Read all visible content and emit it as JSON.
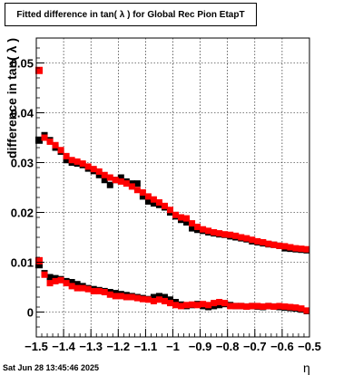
{
  "title": "Fitted difference in tan( λ ) for Global Rec Pion EtapT",
  "footer_date": "Sat Jun 28 13:45:46 2025",
  "chart_data": {
    "type": "scatter",
    "title": "Fitted difference in tan( λ ) for Global Rec Pion EtapT",
    "xlabel": "η",
    "ylabel": "difference in tan( λ )",
    "xlim": [
      -1.5,
      -0.5
    ],
    "ylim": [
      -0.005,
      0.055
    ],
    "grid": true,
    "x_ticks": [
      -1.5,
      -1.4,
      -1.3,
      -1.2,
      -1.1,
      -1.0,
      -0.9,
      -0.8,
      -0.7,
      -0.6,
      -0.5
    ],
    "x_tick_labels": [
      "−1.5",
      "−1.4",
      "−1.3",
      "−1.2",
      "−1.1",
      "−1",
      "−0.9",
      "−0.8",
      "−0.7",
      "−0.6",
      "−0.5"
    ],
    "y_ticks": [
      0,
      0.01,
      0.02,
      0.03,
      0.04,
      0.05
    ],
    "y_tick_labels": [
      "0",
      "0.01",
      "0.02",
      "0.03",
      "0.04",
      "0.05"
    ],
    "series": [
      {
        "color": "#000000",
        "x": [
          -1.49,
          -1.47,
          -1.45,
          -1.43,
          -1.41,
          -1.39,
          -1.37,
          -1.35,
          -1.33,
          -1.31,
          -1.29,
          -1.27,
          -1.25,
          -1.23,
          -1.21,
          -1.19,
          -1.17,
          -1.15,
          -1.13,
          -1.11,
          -1.09,
          -1.07,
          -1.05,
          -1.03,
          -1.01,
          -0.99,
          -0.97,
          -0.95,
          -0.93,
          -0.91,
          -0.89,
          -0.87,
          -0.85,
          -0.83,
          -0.81,
          -0.79,
          -0.77,
          -0.75,
          -0.73,
          -0.71,
          -0.69,
          -0.67,
          -0.65,
          -0.63,
          -0.61,
          -0.59,
          -0.57,
          -0.55,
          -0.53,
          -0.51
        ],
        "y": [
          0.0345,
          0.0355,
          0.0345,
          0.033,
          0.0322,
          0.0305,
          0.03,
          0.0298,
          0.0295,
          0.0288,
          0.0283,
          0.0275,
          0.0265,
          0.0255,
          0.0265,
          0.027,
          0.0262,
          0.0258,
          0.0258,
          0.0232,
          0.0222,
          0.0218,
          0.0215,
          0.021,
          0.02,
          0.0192,
          0.0185,
          0.018,
          0.0168,
          0.0165,
          0.0163,
          0.016,
          0.0158,
          0.0156,
          0.0155,
          0.0152,
          0.015,
          0.0148,
          0.0146,
          0.0142,
          0.014,
          0.0138,
          0.0136,
          0.0135,
          0.0133,
          0.0128,
          0.0127,
          0.0126,
          0.0125,
          0.0124
        ]
      },
      {
        "color": "#ff0000",
        "x": [
          -1.49,
          -1.47,
          -1.45,
          -1.43,
          -1.41,
          -1.39,
          -1.37,
          -1.35,
          -1.33,
          -1.31,
          -1.29,
          -1.27,
          -1.25,
          -1.23,
          -1.21,
          -1.19,
          -1.17,
          -1.15,
          -1.13,
          -1.11,
          -1.09,
          -1.07,
          -1.05,
          -1.03,
          -1.01,
          -0.99,
          -0.97,
          -0.95,
          -0.93,
          -0.91,
          -0.89,
          -0.87,
          -0.85,
          -0.83,
          -0.81,
          -0.79,
          -0.77,
          -0.75,
          -0.73,
          -0.71,
          -0.69,
          -0.67,
          -0.65,
          -0.63,
          -0.61,
          -0.59,
          -0.57,
          -0.55,
          -0.53,
          -0.51
        ],
        "y": [
          0.0485,
          0.035,
          0.0342,
          0.0335,
          0.0325,
          0.0313,
          0.0305,
          0.0302,
          0.0298,
          0.0292,
          0.0287,
          0.0282,
          0.0275,
          0.027,
          0.0265,
          0.0262,
          0.0258,
          0.0252,
          0.0245,
          0.024,
          0.0232,
          0.0226,
          0.022,
          0.0213,
          0.0205,
          0.0195,
          0.019,
          0.0188,
          0.0178,
          0.0171,
          0.0166,
          0.0163,
          0.016,
          0.0158,
          0.0156,
          0.0155,
          0.0153,
          0.015,
          0.0148,
          0.0145,
          0.0142,
          0.014,
          0.0137,
          0.0135,
          0.0133,
          0.0132,
          0.013,
          0.0128,
          0.0127,
          0.0126
        ]
      },
      {
        "color": "#000000",
        "x": [
          -1.49,
          -1.47,
          -1.45,
          -1.43,
          -1.41,
          -1.39,
          -1.37,
          -1.35,
          -1.33,
          -1.31,
          -1.29,
          -1.27,
          -1.25,
          -1.23,
          -1.21,
          -1.19,
          -1.17,
          -1.15,
          -1.13,
          -1.11,
          -1.09,
          -1.07,
          -1.05,
          -1.03,
          -1.01,
          -0.99,
          -0.97,
          -0.95,
          -0.93,
          -0.91,
          -0.89,
          -0.87,
          -0.85,
          -0.83,
          -0.81,
          -0.79,
          -0.77,
          -0.75,
          -0.73,
          -0.71,
          -0.69,
          -0.67,
          -0.65,
          -0.63,
          -0.61,
          -0.59,
          -0.57,
          -0.55,
          -0.53,
          -0.51
        ],
        "y": [
          0.0095,
          0.0078,
          0.007,
          0.0068,
          0.0066,
          0.0062,
          0.006,
          0.0056,
          0.0052,
          0.0048,
          0.0046,
          0.0044,
          0.0042,
          0.004,
          0.0038,
          0.0036,
          0.0034,
          0.0032,
          0.003,
          0.0028,
          0.0026,
          0.003,
          0.0032,
          0.003,
          0.0025,
          0.002,
          0.0015,
          0.0012,
          0.0014,
          0.0016,
          0.0012,
          0.001,
          0.0012,
          0.0014,
          0.0016,
          0.0014,
          0.0012,
          0.0012,
          0.0011,
          0.0012,
          0.0011,
          0.001,
          0.0012,
          0.0011,
          0.001,
          0.0009,
          0.0008,
          0.0007,
          0.0005,
          0.0002
        ]
      },
      {
        "color": "#ff0000",
        "x": [
          -1.49,
          -1.47,
          -1.45,
          -1.43,
          -1.41,
          -1.39,
          -1.37,
          -1.35,
          -1.33,
          -1.31,
          -1.29,
          -1.27,
          -1.25,
          -1.23,
          -1.21,
          -1.19,
          -1.17,
          -1.15,
          -1.13,
          -1.11,
          -1.09,
          -1.07,
          -1.05,
          -1.03,
          -1.01,
          -0.99,
          -0.97,
          -0.95,
          -0.93,
          -0.91,
          -0.89,
          -0.87,
          -0.85,
          -0.83,
          -0.81,
          -0.79,
          -0.77,
          -0.75,
          -0.73,
          -0.71,
          -0.69,
          -0.67,
          -0.65,
          -0.63,
          -0.61,
          -0.59,
          -0.57,
          -0.55,
          -0.53,
          -0.51
        ],
        "y": [
          0.0103,
          0.0075,
          0.0058,
          0.0062,
          0.0064,
          0.0058,
          0.0052,
          0.0048,
          0.0048,
          0.0046,
          0.0042,
          0.0042,
          0.004,
          0.0035,
          0.0032,
          0.0032,
          0.003,
          0.003,
          0.0028,
          0.0026,
          0.0025,
          0.0022,
          0.0025,
          0.0022,
          0.0018,
          0.0014,
          0.0012,
          0.0014,
          0.0015,
          0.0014,
          0.0016,
          0.0014,
          0.0018,
          0.002,
          0.0018,
          0.0012,
          0.0012,
          0.0012,
          0.0011,
          0.0012,
          0.0012,
          0.0011,
          0.0012,
          0.0011,
          0.0012,
          0.0011,
          0.001,
          0.0009,
          0.0007,
          0.0003
        ]
      }
    ]
  }
}
